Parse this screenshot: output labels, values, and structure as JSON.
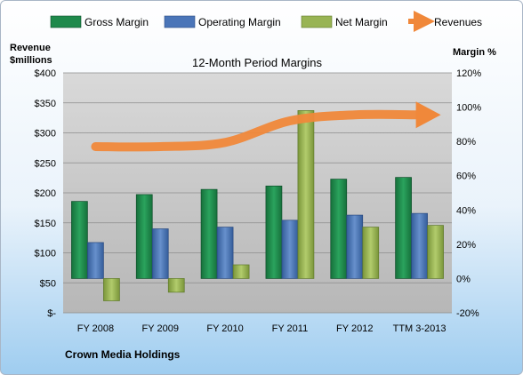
{
  "chart_data": {
    "type": "bar",
    "title": "12-Month Period Margins",
    "company": "Crown Media Holdings",
    "left_axis": {
      "title_line1": "Revenue",
      "title_line2": "$millions",
      "ticks": [
        "$-",
        "$50",
        "$100",
        "$150",
        "$200",
        "$250",
        "$300",
        "$350",
        "$400"
      ],
      "ylim": [
        0,
        400
      ]
    },
    "right_axis": {
      "title": "Margin %",
      "ticks": [
        "-20%",
        "0%",
        "20%",
        "40%",
        "60%",
        "80%",
        "100%",
        "120%"
      ],
      "ylim": [
        -20,
        120
      ]
    },
    "categories": [
      "FY 2008",
      "FY 2009",
      "FY 2010",
      "FY 2011",
      "FY 2012",
      "TTM 3-2013"
    ],
    "series": [
      {
        "name": "Gross Margin",
        "kind": "bar",
        "axis": "right",
        "color": "#1f8a4c",
        "values": [
          45,
          49,
          52,
          54,
          58,
          59
        ]
      },
      {
        "name": "Operating Margin",
        "kind": "bar",
        "axis": "right",
        "color": "#4a75b8",
        "values": [
          21,
          29,
          30,
          34,
          37,
          38
        ]
      },
      {
        "name": "Net Margin",
        "kind": "bar",
        "axis": "right",
        "color": "#98b454",
        "values": [
          -13,
          -8,
          8,
          98,
          30,
          31
        ]
      },
      {
        "name": "Revenues",
        "kind": "line",
        "axis": "left",
        "color": "#f0883a",
        "values": [
          277,
          277,
          284,
          320,
          330,
          330
        ]
      }
    ],
    "grid": true,
    "legend": "top"
  }
}
